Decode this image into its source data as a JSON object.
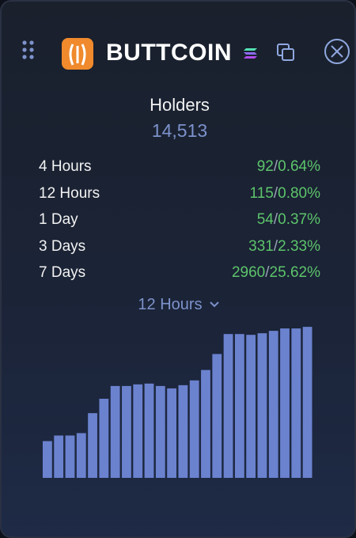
{
  "header": {
    "title": "BUTTCOIN"
  },
  "holders": {
    "label": "Holders",
    "value": "14,513"
  },
  "rows": [
    {
      "label": "4 Hours",
      "count": "92",
      "percent": "0.64%"
    },
    {
      "label": "12 Hours",
      "count": "115",
      "percent": "0.80%"
    },
    {
      "label": "1 Day",
      "count": "54",
      "percent": "0.37%"
    },
    {
      "label": "3 Days",
      "count": "331",
      "percent": "2.33%"
    },
    {
      "label": "7 Days",
      "count": "2960",
      "percent": "25.62%"
    }
  ],
  "selector": {
    "label": "12 Hours"
  },
  "chart_data": {
    "type": "bar",
    "color": "#6b82cf",
    "ylim": [
      0,
      200
    ],
    "values": [
      46,
      53,
      53,
      56,
      81,
      99,
      115,
      115,
      117,
      118,
      115,
      112,
      116,
      122,
      135,
      155,
      180,
      180,
      179,
      181,
      184,
      187,
      187,
      189
    ]
  }
}
